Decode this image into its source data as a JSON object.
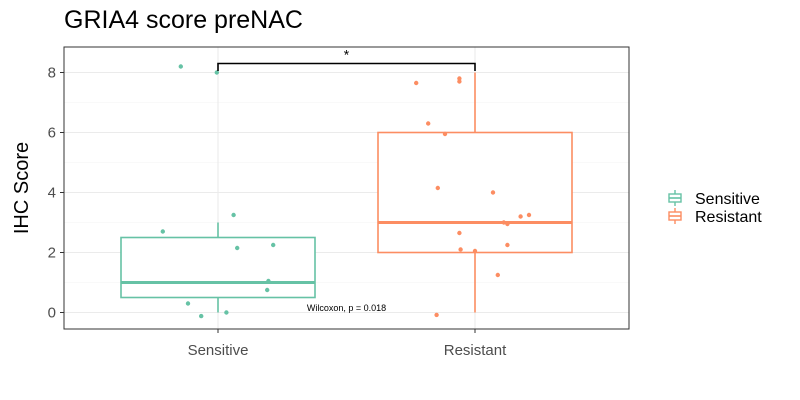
{
  "chart_data": {
    "type": "box",
    "title": "GRIA4 score preNAC",
    "xlabel": "",
    "ylabel": "IHC Score",
    "ylim": [
      -0.55,
      8.85
    ],
    "yticks": [
      0,
      2,
      4,
      6,
      8
    ],
    "grid": true,
    "legend_position": "right",
    "categories": [
      "Sensitive",
      "Resistant"
    ],
    "series": [
      {
        "name": "Sensitive",
        "color": "#66C2A5",
        "box": {
          "min": 0,
          "q1": 0.5,
          "median": 1,
          "q3": 2.5,
          "max": 3
        },
        "points": [
          {
            "x": -0.31,
            "y": 8.2
          },
          {
            "x": -0.01,
            "y": 8.0
          },
          {
            "x": 0.13,
            "y": 3.25
          },
          {
            "x": -0.46,
            "y": 2.7
          },
          {
            "x": 0.16,
            "y": 2.15
          },
          {
            "x": 0.46,
            "y": 2.25
          },
          {
            "x": 0.42,
            "y": 1.05
          },
          {
            "x": 0.41,
            "y": 0.75
          },
          {
            "x": -0.25,
            "y": 0.3
          },
          {
            "x": 0.07,
            "y": 0.0
          },
          {
            "x": -0.14,
            "y": -0.12
          }
        ]
      },
      {
        "name": "Resistant",
        "color": "#FC8D62",
        "box": {
          "min": 0,
          "q1": 2,
          "median": 3,
          "q3": 6,
          "max": 8
        },
        "points": [
          {
            "x": -0.49,
            "y": 7.65
          },
          {
            "x": -0.13,
            "y": 7.8
          },
          {
            "x": -0.13,
            "y": 7.7
          },
          {
            "x": -0.39,
            "y": 6.3
          },
          {
            "x": -0.25,
            "y": 5.95
          },
          {
            "x": -0.31,
            "y": 4.15
          },
          {
            "x": 0.15,
            "y": 4.0
          },
          {
            "x": 0.45,
            "y": 3.25
          },
          {
            "x": 0.38,
            "y": 3.2
          },
          {
            "x": 0.24,
            "y": 3.0
          },
          {
            "x": 0.27,
            "y": 2.95
          },
          {
            "x": -0.13,
            "y": 2.65
          },
          {
            "x": -0.12,
            "y": 2.1
          },
          {
            "x": 0.0,
            "y": 2.05
          },
          {
            "x": 0.27,
            "y": 2.25
          },
          {
            "x": 0.19,
            "y": 1.25
          },
          {
            "x": -0.32,
            "y": -0.08
          }
        ]
      }
    ],
    "annotations": {
      "test_label": "Wilcoxon, p = 0.018",
      "significance": "*"
    }
  }
}
